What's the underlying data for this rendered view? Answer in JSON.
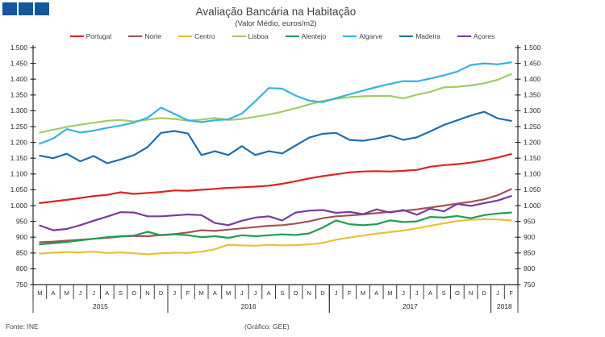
{
  "header": {
    "title": "Avaliação Bancária na Habitação",
    "subtitle": "(Valor Médio, euros/m2)"
  },
  "logo": {
    "squares": 3,
    "color": "#14579c"
  },
  "footer": {
    "source": "Fonte: INE",
    "credit": "(Gráfico: GEE)"
  },
  "chart_data": {
    "type": "line",
    "title": "Avaliação Bancária na Habitação",
    "subtitle": "(Valor Médio, euros/m2)",
    "grid": false,
    "legend_position": "top",
    "y_axis": {
      "min": 750,
      "max": 1500,
      "step": 50,
      "sides": "both",
      "tick_values": [
        1500,
        1450,
        1400,
        1350,
        1300,
        1250,
        1200,
        1150,
        1100,
        1050,
        1000,
        950,
        900,
        850,
        800,
        750
      ],
      "tick_labels": [
        "1.500",
        "1.450",
        "1.400",
        "1.350",
        "1.300",
        "1.250",
        "1.200",
        "1.150",
        "1.100",
        "1.050",
        "1.000",
        "950",
        "900",
        "850",
        "800",
        "750"
      ]
    },
    "x_labels": [
      "M",
      "A",
      "M",
      "J",
      "J",
      "A",
      "S",
      "O",
      "N",
      "D",
      "J",
      "F",
      "M",
      "A",
      "M",
      "J",
      "J",
      "A",
      "S",
      "O",
      "N",
      "D",
      "J",
      "F",
      "M",
      "A",
      "M",
      "J",
      "J",
      "A",
      "S",
      "O",
      "N",
      "D",
      "J",
      "F"
    ],
    "year_groups": [
      {
        "label": "2015",
        "start": 0,
        "count": 10
      },
      {
        "label": "2016",
        "start": 10,
        "count": 12
      },
      {
        "label": "2017",
        "start": 22,
        "count": 12
      },
      {
        "label": "2018",
        "start": 34,
        "count": 2
      }
    ],
    "series": [
      {
        "name": "Portugal",
        "color": "#dd2423",
        "values": [
          1008,
          1013,
          1018,
          1024,
          1030,
          1034,
          1042,
          1037,
          1040,
          1043,
          1048,
          1047,
          1050,
          1053,
          1056,
          1058,
          1060,
          1063,
          1069,
          1077,
          1086,
          1093,
          1099,
          1105,
          1108,
          1109,
          1108,
          1110,
          1113,
          1123,
          1128,
          1131,
          1136,
          1143,
          1152,
          1163
        ]
      },
      {
        "name": "Norte",
        "color": "#a25352",
        "values": [
          884,
          886,
          889,
          892,
          895,
          898,
          902,
          904,
          903,
          907,
          910,
          915,
          922,
          920,
          924,
          928,
          932,
          936,
          938,
          943,
          950,
          960,
          966,
          969,
          972,
          976,
          980,
          984,
          988,
          994,
          1000,
          1006,
          1012,
          1020,
          1033,
          1052
        ]
      },
      {
        "name": "Centro",
        "color": "#e7c236",
        "values": [
          848,
          851,
          853,
          852,
          854,
          850,
          852,
          849,
          846,
          849,
          851,
          850,
          854,
          862,
          876,
          874,
          873,
          876,
          874,
          875,
          877,
          882,
          892,
          899,
          905,
          911,
          916,
          921,
          928,
          936,
          944,
          951,
          955,
          957,
          956,
          953
        ]
      },
      {
        "name": "Lisboa",
        "color": "#a2cc66",
        "values": [
          1231,
          1240,
          1249,
          1256,
          1262,
          1268,
          1271,
          1266,
          1272,
          1277,
          1274,
          1269,
          1272,
          1277,
          1271,
          1274,
          1281,
          1288,
          1297,
          1308,
          1320,
          1331,
          1338,
          1343,
          1346,
          1347,
          1347,
          1339,
          1351,
          1360,
          1374,
          1376,
          1380,
          1387,
          1398,
          1416
        ]
      },
      {
        "name": "Alentejo",
        "color": "#1f9e55",
        "values": [
          877,
          881,
          885,
          890,
          895,
          900,
          903,
          905,
          917,
          906,
          909,
          906,
          900,
          903,
          898,
          906,
          903,
          906,
          909,
          907,
          912,
          930,
          953,
          941,
          938,
          941,
          953,
          948,
          950,
          964,
          962,
          967,
          960,
          970,
          975,
          978
        ]
      },
      {
        "name": "Algarve",
        "color": "#33b4e2",
        "values": [
          1196,
          1212,
          1242,
          1231,
          1237,
          1246,
          1253,
          1263,
          1278,
          1310,
          1290,
          1270,
          1264,
          1270,
          1273,
          1291,
          1330,
          1372,
          1370,
          1348,
          1332,
          1327,
          1340,
          1352,
          1364,
          1375,
          1385,
          1394,
          1393,
          1402,
          1412,
          1424,
          1445,
          1450,
          1447,
          1453
        ]
      },
      {
        "name": "Madeira",
        "color": "#1f6eae",
        "values": [
          1158,
          1150,
          1164,
          1140,
          1157,
          1134,
          1146,
          1160,
          1185,
          1230,
          1236,
          1228,
          1160,
          1172,
          1160,
          1188,
          1160,
          1172,
          1165,
          1190,
          1215,
          1227,
          1230,
          1208,
          1205,
          1212,
          1222,
          1208,
          1216,
          1235,
          1255,
          1270,
          1285,
          1297,
          1276,
          1268
        ]
      },
      {
        "name": "Açores",
        "color": "#7a3b9e",
        "values": [
          937,
          922,
          926,
          938,
          952,
          965,
          979,
          978,
          966,
          966,
          969,
          972,
          970,
          945,
          938,
          952,
          962,
          966,
          953,
          978,
          984,
          986,
          977,
          980,
          973,
          988,
          978,
          986,
          971,
          990,
          982,
          1005,
          999,
          1008,
          1016,
          1030
        ]
      }
    ]
  }
}
